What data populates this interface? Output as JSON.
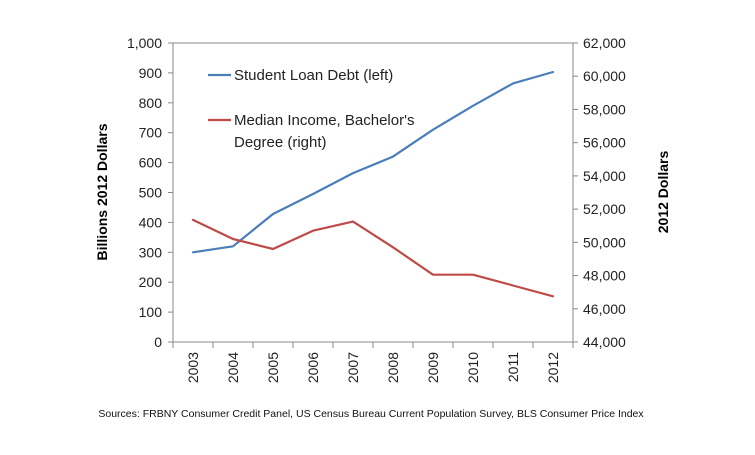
{
  "chart_data": {
    "type": "line",
    "x": [
      "2003",
      "2004",
      "2005",
      "2006",
      "2007",
      "2008",
      "2009",
      "2010",
      "2011",
      "2012"
    ],
    "series": [
      {
        "name": "Student Loan Debt (left)",
        "axis": "left",
        "color": "#4a7ebb",
        "values": [
          300,
          320,
          428,
          495,
          565,
          620,
          710,
          790,
          865,
          903
        ]
      },
      {
        "name": "Median Income, Bachelor's Degree (right)",
        "axis": "right",
        "color": "#be4b48",
        "values": [
          51350,
          50200,
          49600,
          50700,
          51250,
          49700,
          48050,
          48050,
          47400,
          46750
        ]
      }
    ],
    "ylabel_left": "Billions 2012 Dollars",
    "ylabel_right": "2012 Dollars",
    "ylim_left": [
      0,
      1000
    ],
    "ylim_right": [
      44000,
      62000
    ],
    "yticks_left": [
      "0",
      "100",
      "200",
      "300",
      "400",
      "500",
      "600",
      "700",
      "800",
      "900",
      "1,000"
    ],
    "yticks_right": [
      "44,000",
      "46,000",
      "48,000",
      "50,000",
      "52,000",
      "54,000",
      "56,000",
      "58,000",
      "60,000",
      "62,000"
    ],
    "legend": {
      "placement": "top-left",
      "entries": [
        [
          "Student Loan Debt (left)"
        ],
        [
          "Median Income, Bachelor's",
          "Degree (right)"
        ]
      ]
    },
    "grid": false,
    "source": "Sources: FRBNY Consumer Credit Panel, US Census Bureau Current Population Survey, BLS Consumer Price Index"
  }
}
